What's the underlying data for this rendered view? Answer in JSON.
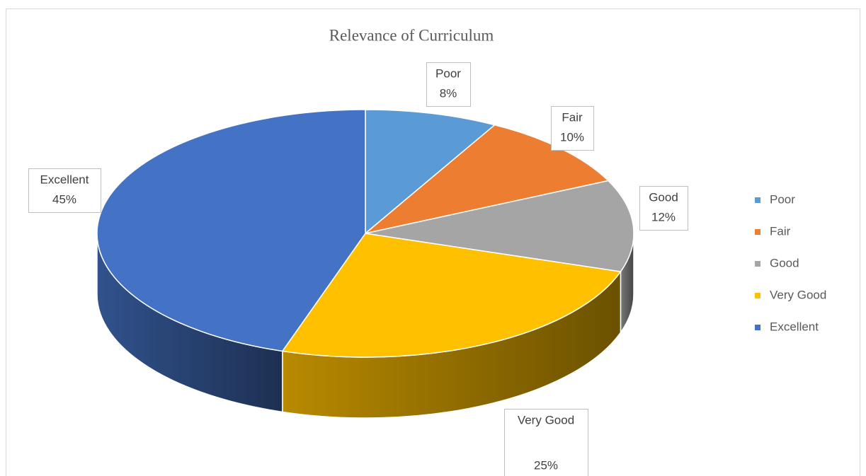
{
  "chart_data": {
    "type": "pie",
    "title": "Relevance of Curriculum",
    "categories": [
      "Poor",
      "Fair",
      "Good",
      "Very Good",
      "Excellent"
    ],
    "values": [
      8,
      10,
      12,
      25,
      45
    ],
    "value_labels": [
      "8%",
      "10%",
      "12%",
      "25%",
      "45%"
    ],
    "colors": [
      "#5b9bd5",
      "#ed7d31",
      "#a5a5a5",
      "#ffc000",
      "#4472c4"
    ],
    "legend": "right"
  }
}
